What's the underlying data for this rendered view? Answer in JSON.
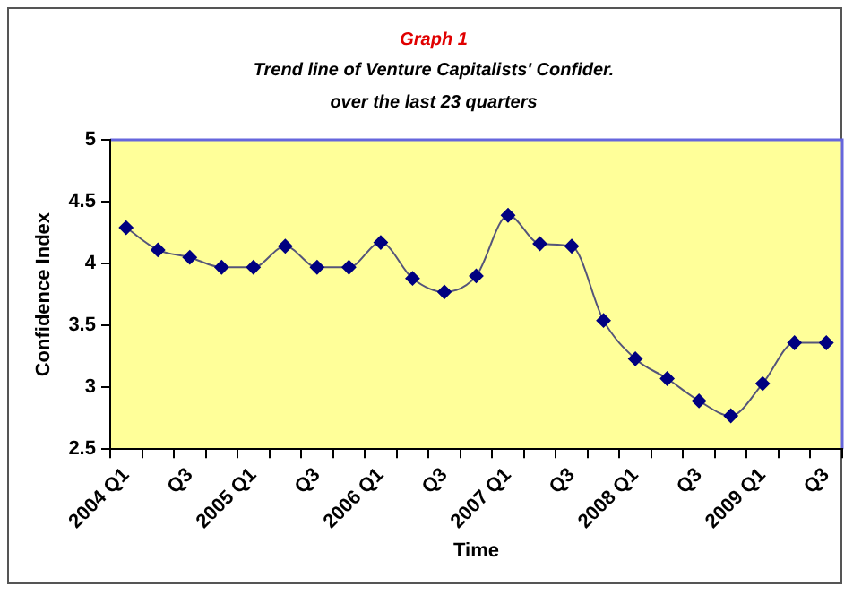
{
  "chart_data": {
    "type": "line",
    "title": "Graph 1",
    "subtitle": "Trend line of Venture Capitalists' Confider.\nover the last 23 quarters",
    "xlabel": "Time",
    "ylabel": "Confidence Index",
    "categories": [
      "2004 Q1",
      null,
      "Q3",
      null,
      "2005 Q1",
      null,
      "Q3",
      null,
      "2006 Q1",
      null,
      "Q3",
      null,
      "2007 Q1",
      null,
      "Q3",
      null,
      "2008 Q1",
      null,
      "Q3",
      null,
      "2009 Q1",
      null,
      "Q3"
    ],
    "series": [
      {
        "color": "#000080",
        "values": [
          4.29,
          4.11,
          4.05,
          3.97,
          3.97,
          4.14,
          3.97,
          3.97,
          4.17,
          3.88,
          3.77,
          3.9,
          4.39,
          4.16,
          4.14,
          3.54,
          3.23,
          3.07,
          2.89,
          2.77,
          3.03,
          3.36,
          3.36
        ]
      }
    ],
    "ylim": [
      2.5,
      5
    ],
    "yticks": [
      2.5,
      3,
      3.5,
      4,
      4.5,
      5
    ],
    "grid": false,
    "legend": false,
    "marker": "diamond",
    "line_style": "solid"
  }
}
